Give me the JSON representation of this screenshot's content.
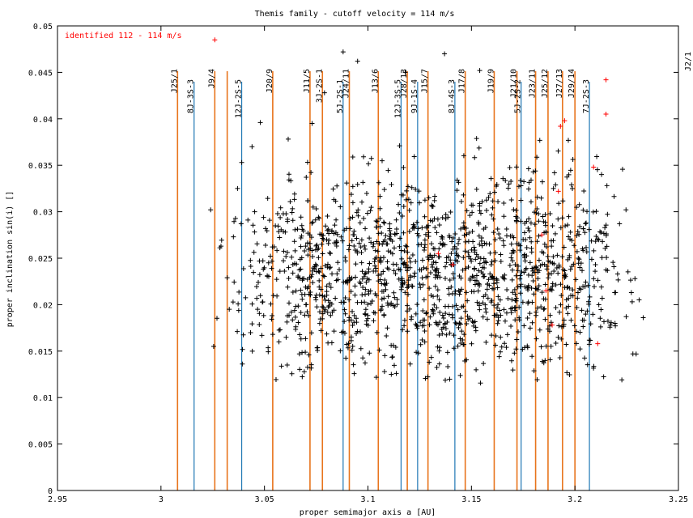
{
  "chart_data": {
    "type": "scatter",
    "title": "Themis family - cutoff velocity = 114 m/s",
    "xlabel": "proper semimajor axis a [AU]",
    "ylabel": "proper inclination sin(i) []",
    "xlim": [
      2.95,
      3.25
    ],
    "ylim": [
      0,
      0.05
    ],
    "grid": false,
    "xticks": [
      "2.95",
      "3",
      "3.05",
      "3.1",
      "3.15",
      "3.2",
      "3.25"
    ],
    "yticks": [
      "0",
      "0.005",
      "0.01",
      "0.015",
      "0.02",
      "0.025",
      "0.03",
      "0.035",
      "0.04",
      "0.045",
      "0.05"
    ],
    "legend": {
      "placement": "top-left",
      "label": "identified 112 - 114 m/s",
      "color": "#ff0000"
    },
    "series": [
      {
        "name": "identified 112 - 114 m/s",
        "color": "#ff0000",
        "marker": "+",
        "points": [
          {
            "x": 3.026,
            "y": 0.0485
          },
          {
            "x": 3.215,
            "y": 0.0442
          },
          {
            "x": 3.215,
            "y": 0.0405
          },
          {
            "x": 3.195,
            "y": 0.0398
          },
          {
            "x": 3.193,
            "y": 0.0392
          },
          {
            "x": 3.209,
            "y": 0.0348
          },
          {
            "x": 3.192,
            "y": 0.0322
          },
          {
            "x": 3.184,
            "y": 0.0275
          },
          {
            "x": 3.134,
            "y": 0.0255
          },
          {
            "x": 3.141,
            "y": 0.0243
          },
          {
            "x": 3.186,
            "y": 0.0215
          },
          {
            "x": 3.189,
            "y": 0.0178
          },
          {
            "x": 3.211,
            "y": 0.0158
          }
        ]
      },
      {
        "name": "",
        "color": "#000000",
        "marker": "+",
        "generated": {
          "count": 1500,
          "seed": 7,
          "a_min": 3.024,
          "a_max": 3.232,
          "a_peak": 3.125,
          "y_mean": 0.0235,
          "y_spread": 0.0105,
          "y_min": 0.0115,
          "y_max": 0.0475
        },
        "points": [
          {
            "x": 3.024,
            "y": 0.0302
          },
          {
            "x": 3.029,
            "y": 0.0263
          },
          {
            "x": 3.032,
            "y": 0.0229
          },
          {
            "x": 3.033,
            "y": 0.0195
          },
          {
            "x": 3.035,
            "y": 0.0273
          },
          {
            "x": 3.037,
            "y": 0.0325
          },
          {
            "x": 3.039,
            "y": 0.0353
          },
          {
            "x": 3.042,
            "y": 0.0291
          },
          {
            "x": 3.044,
            "y": 0.037
          },
          {
            "x": 3.048,
            "y": 0.0396
          },
          {
            "x": 3.047,
            "y": 0.0224
          },
          {
            "x": 3.052,
            "y": 0.0245
          },
          {
            "x": 3.054,
            "y": 0.0168
          },
          {
            "x": 3.057,
            "y": 0.016
          },
          {
            "x": 3.073,
            "y": 0.0395
          },
          {
            "x": 3.079,
            "y": 0.0428
          },
          {
            "x": 3.088,
            "y": 0.0472
          },
          {
            "x": 3.095,
            "y": 0.0462
          },
          {
            "x": 3.118,
            "y": 0.045
          },
          {
            "x": 3.137,
            "y": 0.047
          },
          {
            "x": 3.154,
            "y": 0.0452
          },
          {
            "x": 3.229,
            "y": 0.0228
          },
          {
            "x": 3.233,
            "y": 0.0186
          },
          {
            "x": 3.228,
            "y": 0.0147
          },
          {
            "x": 3.061,
            "y": 0.0135
          },
          {
            "x": 3.063,
            "y": 0.0192
          }
        ]
      }
    ],
    "vlines_orange": [
      {
        "x": 3.008,
        "label": "J25/1"
      },
      {
        "x": 3.026,
        "label": "J9/4"
      },
      {
        "x": 3.032,
        "label": ""
      },
      {
        "x": 3.054,
        "label": "J20/9"
      },
      {
        "x": 3.072,
        "label": "J11/5"
      },
      {
        "x": 3.078,
        "label": "3J-2S-1"
      },
      {
        "x": 3.091,
        "label": "J24/11"
      },
      {
        "x": 3.105,
        "label": "J13/6"
      },
      {
        "x": 3.119,
        "label": "J28/13"
      },
      {
        "x": 3.129,
        "label": "J15/7"
      },
      {
        "x": 3.147,
        "label": "J17/8"
      },
      {
        "x": 3.161,
        "label": "J19/9"
      },
      {
        "x": 3.172,
        "label": "J21/10"
      },
      {
        "x": 3.181,
        "label": "J23/11"
      },
      {
        "x": 3.187,
        "label": "J25/12"
      },
      {
        "x": 3.194,
        "label": "J27/13"
      },
      {
        "x": 3.2,
        "label": "J29/14"
      }
    ],
    "vlines_blue": [
      {
        "x": 3.016,
        "label": "8J-3S-3"
      },
      {
        "x": 3.039,
        "label": "12J-2S-5"
      },
      {
        "x": 3.088,
        "label": "5J-2S-1"
      },
      {
        "x": 3.116,
        "label": "12J-3S-5"
      },
      {
        "x": 3.124,
        "label": "9J-1S-4"
      },
      {
        "x": 3.142,
        "label": "8J-4S-3"
      },
      {
        "x": 3.174,
        "label": "5J-2S-2"
      },
      {
        "x": 3.207,
        "label": "7J-2S-3"
      }
    ],
    "outside_label": "J2/1"
  }
}
